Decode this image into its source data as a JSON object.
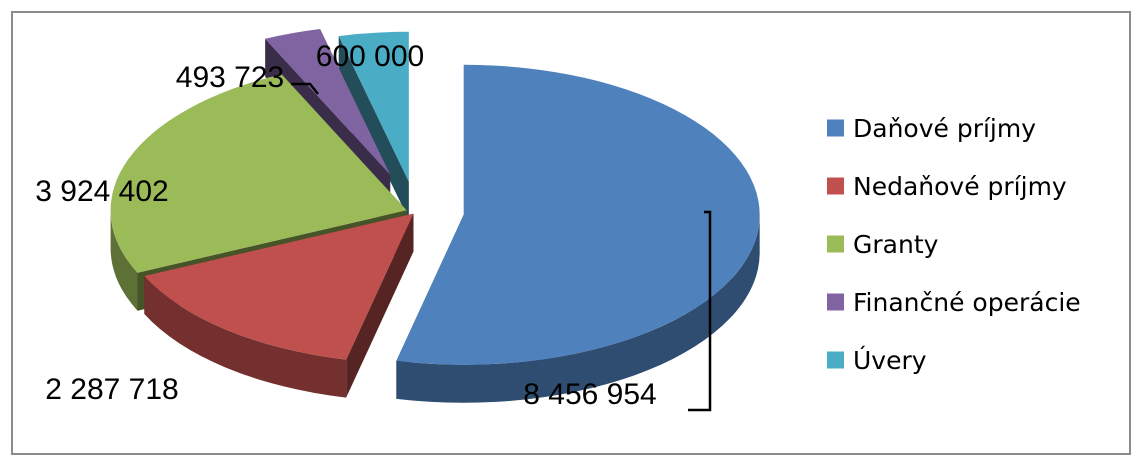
{
  "chart_data": {
    "type": "pie",
    "style": "3d-exploded",
    "title": "",
    "categories": [
      "Daňové príjmy",
      "Nedaňové príjmy",
      "Granty",
      "Finančné operácie",
      "Úvery"
    ],
    "values": [
      8456954,
      2287718,
      3924402,
      493723,
      600000
    ],
    "value_labels": [
      "8 456 954",
      "2 287 718",
      "3 924 402",
      "493 723",
      "600 000"
    ],
    "colors": [
      "#4f81bd",
      "#c0504d",
      "#9bbb59",
      "#8064a2",
      "#4bacc6"
    ],
    "legend_position": "right"
  }
}
